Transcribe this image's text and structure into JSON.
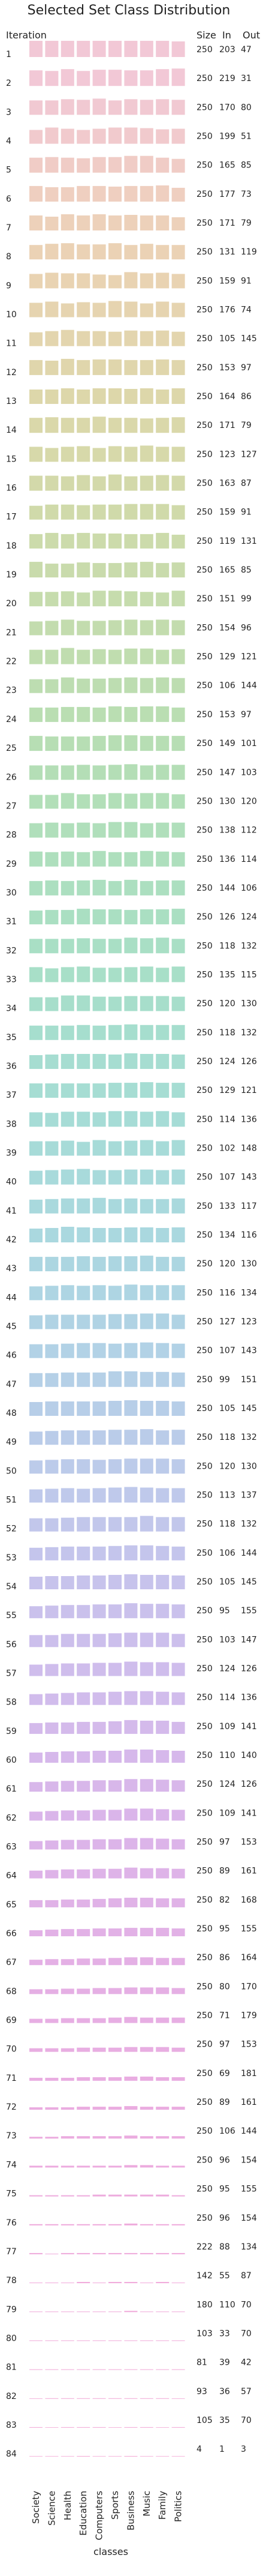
{
  "chart_data": {
    "type": "bar",
    "title": "Selected Set Class Distribution",
    "row_header": "Iteration",
    "column_headers": [
      "Size",
      "In",
      "Out"
    ],
    "xlabel": "classes",
    "categories": [
      "Society",
      "Science",
      "Health",
      "Education",
      "Computers",
      "Sports",
      "Business",
      "Music",
      "Family",
      "Politics"
    ],
    "iterations": [
      1,
      2,
      3,
      4,
      5,
      6,
      7,
      8,
      9,
      10,
      11,
      12,
      13,
      14,
      15,
      16,
      17,
      18,
      19,
      20,
      21,
      22,
      23,
      24,
      25,
      26,
      27,
      28,
      29,
      30,
      31,
      32,
      33,
      34,
      35,
      36,
      37,
      38,
      39,
      40,
      41,
      42,
      43,
      44,
      45,
      46,
      47,
      48,
      49,
      50,
      51,
      52,
      53,
      54,
      55,
      56,
      57,
      58,
      59,
      60,
      61,
      62,
      63,
      64,
      65,
      66,
      67,
      68,
      69,
      70,
      71,
      72,
      73,
      74,
      75,
      76,
      77,
      78,
      79,
      80,
      81,
      82,
      83,
      84
    ],
    "table": [
      [
        250,
        203,
        47
      ],
      [
        250,
        219,
        31
      ],
      [
        250,
        170,
        80
      ],
      [
        250,
        199,
        51
      ],
      [
        250,
        165,
        85
      ],
      [
        250,
        177,
        73
      ],
      [
        250,
        171,
        79
      ],
      [
        250,
        131,
        119
      ],
      [
        250,
        159,
        91
      ],
      [
        250,
        176,
        74
      ],
      [
        250,
        105,
        145
      ],
      [
        250,
        153,
        97
      ],
      [
        250,
        164,
        86
      ],
      [
        250,
        171,
        79
      ],
      [
        250,
        123,
        127
      ],
      [
        250,
        163,
        87
      ],
      [
        250,
        159,
        91
      ],
      [
        250,
        119,
        131
      ],
      [
        250,
        165,
        85
      ],
      [
        250,
        151,
        99
      ],
      [
        250,
        154,
        96
      ],
      [
        250,
        129,
        121
      ],
      [
        250,
        106,
        144
      ],
      [
        250,
        153,
        97
      ],
      [
        250,
        149,
        101
      ],
      [
        250,
        147,
        103
      ],
      [
        250,
        130,
        120
      ],
      [
        250,
        138,
        112
      ],
      [
        250,
        136,
        114
      ],
      [
        250,
        144,
        106
      ],
      [
        250,
        126,
        124
      ],
      [
        250,
        118,
        132
      ],
      [
        250,
        135,
        115
      ],
      [
        250,
        120,
        130
      ],
      [
        250,
        118,
        132
      ],
      [
        250,
        124,
        126
      ],
      [
        250,
        129,
        121
      ],
      [
        250,
        114,
        136
      ],
      [
        250,
        102,
        148
      ],
      [
        250,
        107,
        143
      ],
      [
        250,
        133,
        117
      ],
      [
        250,
        134,
        116
      ],
      [
        250,
        120,
        130
      ],
      [
        250,
        116,
        134
      ],
      [
        250,
        127,
        123
      ],
      [
        250,
        107,
        143
      ],
      [
        250,
        99,
        151
      ],
      [
        250,
        105,
        145
      ],
      [
        250,
        118,
        132
      ],
      [
        250,
        120,
        130
      ],
      [
        250,
        113,
        137
      ],
      [
        250,
        118,
        132
      ],
      [
        250,
        106,
        144
      ],
      [
        250,
        105,
        145
      ],
      [
        250,
        95,
        155
      ],
      [
        250,
        103,
        147
      ],
      [
        250,
        124,
        126
      ],
      [
        250,
        114,
        136
      ],
      [
        250,
        109,
        141
      ],
      [
        250,
        110,
        140
      ],
      [
        250,
        124,
        126
      ],
      [
        250,
        109,
        141
      ],
      [
        250,
        97,
        153
      ],
      [
        250,
        89,
        161
      ],
      [
        250,
        82,
        168
      ],
      [
        250,
        95,
        155
      ],
      [
        250,
        86,
        164
      ],
      [
        250,
        80,
        170
      ],
      [
        250,
        71,
        179
      ],
      [
        250,
        97,
        153
      ],
      [
        250,
        69,
        181
      ],
      [
        250,
        89,
        161
      ],
      [
        250,
        106,
        144
      ],
      [
        250,
        96,
        154
      ],
      [
        250,
        95,
        155
      ],
      [
        250,
        96,
        154
      ],
      [
        222,
        88,
        134
      ],
      [
        142,
        55,
        87
      ],
      [
        180,
        110,
        70
      ],
      [
        103,
        33,
        70
      ],
      [
        81,
        39,
        42
      ],
      [
        93,
        36,
        57
      ],
      [
        105,
        35,
        70
      ],
      [
        4,
        1,
        3
      ]
    ],
    "bar_scale_max": 36,
    "distribution": [
      [
        27,
        27,
        27,
        27,
        27,
        27,
        27,
        27,
        27,
        26
      ],
      [
        26,
        25,
        28,
        25,
        27,
        27,
        26,
        26,
        28,
        29
      ],
      [
        24,
        24,
        26,
        25,
        27,
        24,
        26,
        25,
        26,
        25
      ],
      [
        23,
        27,
        25,
        23,
        25,
        27,
        27,
        26,
        24,
        25
      ],
      [
        25,
        26,
        25,
        24,
        26,
        26,
        28,
        28,
        25,
        23
      ],
      [
        26,
        24,
        24,
        26,
        26,
        25,
        26,
        26,
        27,
        23
      ],
      [
        25,
        23,
        27,
        25,
        27,
        25,
        26,
        25,
        25,
        22
      ],
      [
        24,
        26,
        27,
        25,
        25,
        27,
        24,
        26,
        24,
        24
      ],
      [
        24,
        26,
        25,
        25,
        23,
        22,
        27,
        25,
        26,
        24
      ],
      [
        24,
        26,
        23,
        25,
        24,
        27,
        26,
        23,
        26,
        24
      ],
      [
        23,
        25,
        27,
        25,
        25,
        24,
        26,
        25,
        26,
        24
      ],
      [
        25,
        24,
        27,
        25,
        26,
        26,
        25,
        25,
        26,
        25
      ],
      [
        24,
        24,
        26,
        24,
        26,
        26,
        25,
        26,
        24,
        26
      ],
      [
        25,
        26,
        25,
        25,
        27,
        25,
        25,
        24,
        25,
        26
      ],
      [
        25,
        23,
        25,
        26,
        23,
        26,
        25,
        27,
        25,
        25
      ],
      [
        25,
        25,
        24,
        26,
        24,
        27,
        24,
        25,
        26,
        25
      ],
      [
        23,
        25,
        25,
        24,
        25,
        25,
        26,
        26,
        26,
        24
      ],
      [
        24,
        26,
        24,
        26,
        25,
        25,
        24,
        24,
        26,
        23
      ],
      [
        26,
        23,
        23,
        25,
        24,
        24,
        25,
        26,
        24,
        25
      ],
      [
        24,
        24,
        25,
        23,
        26,
        26,
        25,
        24,
        23,
        26
      ],
      [
        23,
        24,
        26,
        24,
        24,
        25,
        26,
        25,
        26,
        25
      ],
      [
        24,
        24,
        27,
        24,
        25,
        24,
        26,
        26,
        24,
        25
      ],
      [
        23,
        23,
        26,
        24,
        24,
        25,
        26,
        25,
        26,
        25
      ],
      [
        24,
        24,
        25,
        25,
        24,
        26,
        25,
        26,
        26,
        24
      ],
      [
        25,
        24,
        24,
        24,
        25,
        26,
        26,
        25,
        25,
        25
      ],
      [
        24,
        24,
        24,
        25,
        24,
        25,
        26,
        24,
        25,
        25
      ],
      [
        23,
        23,
        26,
        24,
        24,
        26,
        25,
        26,
        26,
        24
      ],
      [
        24,
        25,
        24,
        25,
        24,
        26,
        26,
        24,
        25,
        25
      ],
      [
        25,
        24,
        25,
        24,
        26,
        24,
        24,
        26,
        25,
        24
      ],
      [
        24,
        25,
        24,
        25,
        26,
        24,
        26,
        24,
        25,
        25
      ],
      [
        23,
        24,
        24,
        26,
        25,
        25,
        24,
        25,
        25,
        26
      ],
      [
        24,
        24,
        24,
        25,
        24,
        24,
        26,
        25,
        26,
        24
      ],
      [
        25,
        23,
        25,
        26,
        24,
        24,
        25,
        26,
        24,
        26
      ],
      [
        23,
        23,
        26,
        26,
        24,
        24,
        25,
        25,
        25,
        24
      ],
      [
        24,
        24,
        24,
        25,
        24,
        25,
        26,
        25,
        25,
        25
      ],
      [
        23,
        24,
        25,
        25,
        25,
        24,
        26,
        25,
        25,
        24
      ],
      [
        24,
        24,
        24,
        24,
        24,
        25,
        25,
        26,
        25,
        25
      ],
      [
        24,
        23,
        25,
        25,
        24,
        26,
        26,
        25,
        26,
        24
      ],
      [
        24,
        24,
        25,
        23,
        26,
        24,
        25,
        26,
        24,
        26
      ],
      [
        23,
        24,
        25,
        26,
        24,
        24,
        25,
        25,
        24,
        25
      ],
      [
        23,
        24,
        25,
        25,
        26,
        24,
        25,
        24,
        24,
        25
      ],
      [
        23,
        24,
        26,
        25,
        24,
        24,
        25,
        25,
        24,
        25
      ],
      [
        24,
        24,
        24,
        25,
        24,
        25,
        25,
        26,
        24,
        24
      ],
      [
        23,
        24,
        25,
        24,
        25,
        24,
        26,
        25,
        25,
        25
      ],
      [
        23,
        24,
        24,
        24,
        24,
        25,
        25,
        26,
        26,
        24
      ],
      [
        23,
        23,
        24,
        25,
        25,
        24,
        25,
        26,
        25,
        24
      ],
      [
        23,
        23,
        24,
        24,
        24,
        26,
        26,
        25,
        25,
        24
      ],
      [
        23,
        24,
        24,
        24,
        24,
        25,
        26,
        25,
        25,
        24
      ],
      [
        22,
        23,
        24,
        24,
        24,
        25,
        25,
        26,
        24,
        25
      ],
      [
        22,
        23,
        24,
        24,
        23,
        24,
        25,
        25,
        25,
        24
      ],
      [
        22,
        23,
        24,
        23,
        24,
        25,
        26,
        25,
        24,
        24
      ],
      [
        22,
        22,
        23,
        24,
        24,
        24,
        24,
        26,
        24,
        24
      ],
      [
        21,
        22,
        23,
        23,
        23,
        24,
        25,
        25,
        24,
        23
      ],
      [
        21,
        22,
        22,
        23,
        23,
        24,
        25,
        24,
        24,
        23
      ],
      [
        20,
        21,
        22,
        22,
        23,
        23,
        25,
        24,
        24,
        23
      ],
      [
        20,
        20,
        22,
        22,
        22,
        23,
        24,
        24,
        24,
        22
      ],
      [
        19,
        20,
        21,
        21,
        22,
        22,
        24,
        23,
        23,
        22
      ],
      [
        18,
        19,
        20,
        21,
        21,
        22,
        23,
        23,
        22,
        21
      ],
      [
        18,
        19,
        19,
        20,
        20,
        21,
        23,
        22,
        22,
        20
      ],
      [
        17,
        18,
        19,
        19,
        20,
        20,
        22,
        22,
        21,
        20
      ],
      [
        16,
        17,
        18,
        18,
        19,
        19,
        21,
        21,
        20,
        19
      ],
      [
        15,
        16,
        17,
        17,
        18,
        18,
        20,
        20,
        19,
        18
      ],
      [
        14,
        15,
        16,
        16,
        17,
        17,
        19,
        19,
        18,
        17
      ],
      [
        13,
        14,
        15,
        15,
        16,
        16,
        18,
        17,
        17,
        16
      ],
      [
        12,
        12,
        13,
        13,
        14,
        15,
        16,
        16,
        15,
        15
      ],
      [
        10,
        11,
        12,
        12,
        13,
        13,
        14,
        14,
        14,
        13
      ],
      [
        9,
        10,
        10,
        11,
        11,
        12,
        13,
        13,
        12,
        12
      ],
      [
        8,
        8,
        9,
        9,
        10,
        10,
        11,
        11,
        11,
        10
      ],
      [
        7,
        7,
        8,
        8,
        8,
        9,
        10,
        9,
        9,
        9
      ],
      [
        6,
        6,
        6,
        7,
        7,
        7,
        8,
        8,
        8,
        7
      ],
      [
        5,
        5,
        5,
        6,
        6,
        6,
        7,
        7,
        6,
        6
      ],
      [
        4,
        4,
        4,
        5,
        5,
        5,
        6,
        5,
        5,
        5
      ],
      [
        3,
        3,
        4,
        4,
        4,
        4,
        5,
        4,
        4,
        4
      ],
      [
        3,
        3,
        3,
        3,
        3,
        3,
        4,
        4,
        3,
        3
      ],
      [
        2,
        2,
        2,
        2,
        3,
        3,
        3,
        3,
        3,
        2
      ],
      [
        2,
        2,
        2,
        2,
        2,
        2,
        3,
        2,
        2,
        2
      ],
      [
        2,
        1,
        2,
        2,
        2,
        2,
        2,
        2,
        2,
        2
      ],
      [
        1,
        1,
        1,
        2,
        1,
        2,
        2,
        1,
        2,
        1
      ],
      [
        1,
        1,
        1,
        1,
        1,
        1,
        2,
        1,
        1,
        1
      ],
      [
        1,
        1,
        1,
        1,
        1,
        1,
        1,
        1,
        1,
        1
      ],
      [
        1,
        1,
        1,
        1,
        1,
        1,
        1,
        1,
        1,
        1
      ],
      [
        0,
        1,
        1,
        1,
        1,
        1,
        1,
        1,
        1,
        0
      ],
      [
        1,
        0,
        1,
        1,
        1,
        0,
        1,
        1,
        0,
        1
      ],
      [
        0,
        0,
        0,
        1,
        0,
        0,
        1,
        0,
        0,
        0
      ]
    ],
    "row_colors": [
      "#f2c8d6",
      "#f2c8d6",
      "#f1c9d2",
      "#f1cacd",
      "#f0ccc6",
      "#efcfc0",
      "#edd1ba",
      "#ebd2b5",
      "#e9d3b2",
      "#e6d4b0",
      "#e3d5ae",
      "#e0d6ac",
      "#ddd7aa",
      "#dad8aa",
      "#d7d9aa",
      "#d3d9aa",
      "#d0daaa",
      "#ccdbab",
      "#c9dbac",
      "#c6dcad",
      "#c3dcae",
      "#c0ddaf",
      "#bdddb1",
      "#badeb2",
      "#b7deb4",
      "#b4deb6",
      "#b2dfb8",
      "#b0dfbb",
      "#aedfbd",
      "#acdfc0",
      "#aadfc2",
      "#a9dfc5",
      "#a8dfc8",
      "#a7decb",
      "#a6dece",
      "#a6ddd1",
      "#a6ddd3",
      "#a6dcd6",
      "#a7dbd8",
      "#a8dadb",
      "#a9d9dd",
      "#aad8df",
      "#acd6e1",
      "#aed5e3",
      "#b0d3e4",
      "#b2d2e6",
      "#b5d0e7",
      "#b7cee8",
      "#bacce9",
      "#bccbea",
      "#bfc9eb",
      "#c2c7eb",
      "#c4c5ec",
      "#c7c3ec",
      "#cac1ec",
      "#ccbfec",
      "#cfbdec",
      "#d1bcec",
      "#d4baeb",
      "#d6b8eb",
      "#d8b7ea",
      "#dab5ea",
      "#dcb4e9",
      "#deb3e8",
      "#e0b2e7",
      "#e2b1e6",
      "#e4b0e5",
      "#e5afe4",
      "#e7aee3",
      "#e8aee2",
      "#e9ade1",
      "#eaace0",
      "#ebacdf",
      "#ecabde",
      "#edabdd",
      "#eeaadc",
      "#efaadb",
      "#f0a9da",
      "#f0a9d9",
      "#f1a8d8",
      "#f1a8d7",
      "#f2a7d6",
      "#f2a7d5",
      "#f3a6d4"
    ],
    "grid": false,
    "legend": "none"
  }
}
